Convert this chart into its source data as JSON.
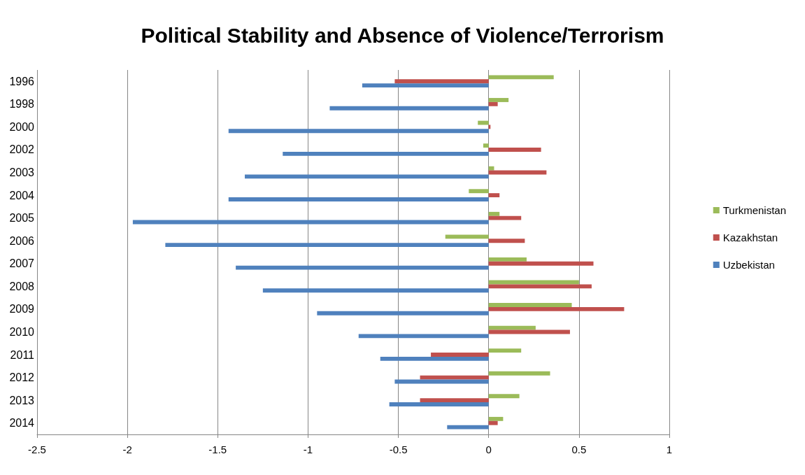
{
  "chart_data": {
    "type": "bar",
    "orientation": "horizontal",
    "title": "Political Stability and Absence of Violence/Terrorism",
    "categories": [
      "1996",
      "1998",
      "2000",
      "2002",
      "2003",
      "2004",
      "2005",
      "2006",
      "2007",
      "2008",
      "2009",
      "2010",
      "2011",
      "2012",
      "2013",
      "2014"
    ],
    "series": [
      {
        "name": "Turkmenistan",
        "color": "#9bbb59",
        "values": [
          0.36,
          0.11,
          -0.06,
          -0.03,
          0.03,
          -0.11,
          0.06,
          -0.24,
          0.21,
          0.5,
          0.46,
          0.26,
          0.18,
          0.34,
          0.17,
          0.08
        ]
      },
      {
        "name": "Kazakhstan",
        "color": "#c0504d",
        "values": [
          -0.52,
          0.05,
          0.01,
          0.29,
          0.32,
          0.06,
          0.18,
          0.2,
          0.58,
          0.57,
          0.75,
          0.45,
          -0.32,
          -0.38,
          -0.38,
          0.05
        ]
      },
      {
        "name": "Uzbekistan",
        "color": "#4f81bd",
        "values": [
          -0.7,
          -0.88,
          -1.44,
          -1.14,
          -1.35,
          -1.44,
          -1.97,
          -1.79,
          -1.4,
          -1.25,
          -0.95,
          -0.72,
          -0.6,
          -0.52,
          -0.55,
          -0.23
        ]
      }
    ],
    "xlim": [
      -2.5,
      1
    ],
    "xticks": [
      -2.5,
      -2,
      -1.5,
      -1,
      -0.5,
      0,
      0.5,
      1
    ],
    "grid": "x",
    "legend": "right"
  }
}
